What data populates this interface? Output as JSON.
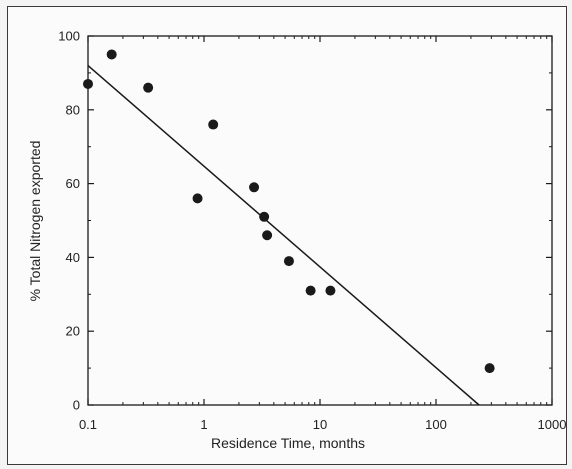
{
  "chart_data": {
    "type": "scatter",
    "title": "",
    "xlabel": "Residence Time, months",
    "ylabel": "% Total Nitrogen exported",
    "xscale": "log",
    "xlim": [
      0.1,
      1000
    ],
    "ylim": [
      0,
      100
    ],
    "x_ticks": [
      "0.1",
      "1",
      "10",
      "100",
      "1000"
    ],
    "y_ticks": [
      "0",
      "20",
      "40",
      "60",
      "80",
      "100"
    ],
    "grid": false,
    "legend": "none",
    "points": [
      {
        "x": 0.1,
        "y": 87
      },
      {
        "x": 0.16,
        "y": 95
      },
      {
        "x": 0.33,
        "y": 86
      },
      {
        "x": 0.88,
        "y": 56
      },
      {
        "x": 1.2,
        "y": 76
      },
      {
        "x": 2.7,
        "y": 59
      },
      {
        "x": 3.3,
        "y": 51
      },
      {
        "x": 3.5,
        "y": 46
      },
      {
        "x": 5.4,
        "y": 39
      },
      {
        "x": 8.3,
        "y": 31
      },
      {
        "x": 12.3,
        "y": 31
      },
      {
        "x": 290,
        "y": 10
      }
    ],
    "trend_line": {
      "x": [
        0.1,
        235
      ],
      "y": [
        92,
        0
      ]
    },
    "colors": {
      "marker": "#1a1a1a",
      "line": "#1a1a1a",
      "axis": "#1a1a1a"
    }
  }
}
